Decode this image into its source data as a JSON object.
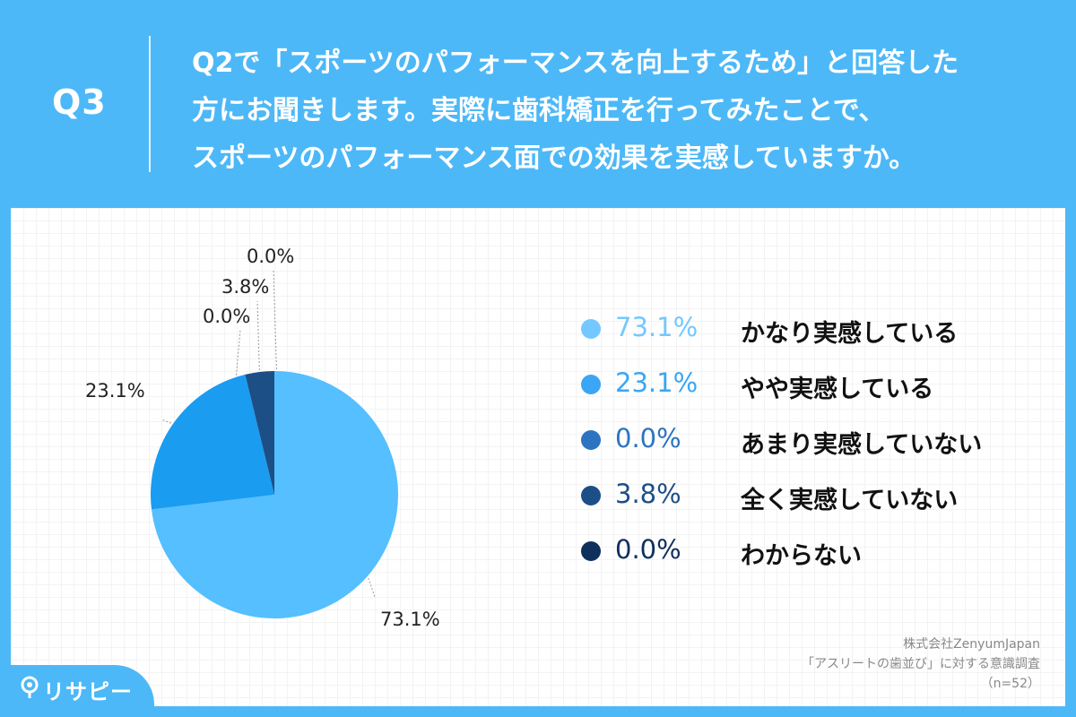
{
  "header": {
    "q_number": "Q3",
    "question_lines": [
      "Q2で「スポーツのパフォーマンスを向上するため」と回答した",
      "方にお聞きします。実際に歯科矯正を行ってみたことで、",
      "スポーツのパフォーマンス面での効果を実感していますか。"
    ]
  },
  "chart_data": {
    "type": "pie",
    "title": "",
    "start_angle_deg": 0,
    "direction": "clockwise",
    "slices": [
      {
        "label": "かなり実感している",
        "value": 73.1,
        "display": "73.1%",
        "color": "#55bfff"
      },
      {
        "label": "やや実感している",
        "value": 23.1,
        "display": "23.1%",
        "color": "#1a9cf0"
      },
      {
        "label": "あまり実感していない",
        "value": 0.0,
        "display": "0.0%",
        "color": "#2c74c2"
      },
      {
        "label": "全く実感していない",
        "value": 3.8,
        "display": "3.8%",
        "color": "#1d4f87"
      },
      {
        "label": "わからない",
        "value": 0.0,
        "display": "0.0%",
        "color": "#0f2f5c"
      }
    ],
    "legend_position": "right"
  },
  "legend": {
    "items": [
      {
        "pct": "73.1%",
        "label": "かなり実感している",
        "dot_color": "#74c8ff",
        "pct_color": "#74c8ff"
      },
      {
        "pct": "23.1%",
        "label": "やや実感している",
        "dot_color": "#3aa6f5",
        "pct_color": "#3aa6f5"
      },
      {
        "pct": "0.0%",
        "label": "あまり実感していない",
        "dot_color": "#2c74c2",
        "pct_color": "#2c74c2"
      },
      {
        "pct": "3.8%",
        "label": "全く実感していない",
        "dot_color": "#1d4f87",
        "pct_color": "#1d4f87"
      },
      {
        "pct": "0.0%",
        "label": "わからない",
        "dot_color": "#0f2f5c",
        "pct_color": "#0f2f5c"
      }
    ]
  },
  "source": {
    "company": "株式会社ZenyumJapan",
    "survey": "「アスリートの歯並び」に対する意識調査",
    "sample": "（n=52）"
  },
  "brand": {
    "name": "リサピー",
    "icon": "pin-icon"
  }
}
